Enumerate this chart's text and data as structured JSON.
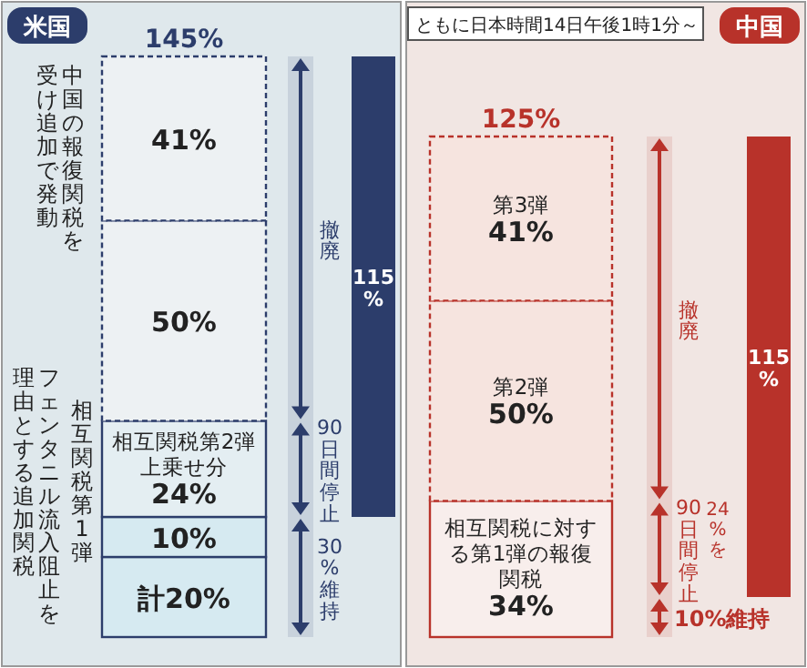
{
  "chart_data": [
    {
      "type": "bar",
      "stacked": true,
      "title": "米国",
      "categories": [
        null
      ],
      "series": [
        {
          "color": "#d6eaf1",
          "values": [
            20
          ],
          "value_labels": [
            "計20%"
          ]
        },
        {
          "color": "#d6eaf1",
          "values": [
            10
          ],
          "value_labels": [
            "10%"
          ]
        },
        {
          "name": "相互関税第2弾上乗せ分",
          "color": "#e4eef2",
          "values": [
            24
          ],
          "value_labels": [
            "24%"
          ]
        },
        {
          "color": "#edf1f3",
          "values": [
            50
          ],
          "value_labels": [
            "50%"
          ]
        },
        {
          "color": "#edf1f3",
          "values": [
            41
          ],
          "value_labels": [
            "41%"
          ]
        }
      ],
      "totals": [
        "145%"
      ],
      "bands": [
        {
          "axis": "y",
          "from": 54,
          "to": 145,
          "label": "撤廃"
        },
        {
          "axis": "y",
          "from": 30,
          "to": 54,
          "label": "90日間停止"
        },
        {
          "axis": "y",
          "from": 0,
          "to": 30,
          "label": "30%維持"
        },
        {
          "axis": "y",
          "from": 30,
          "to": 145,
          "label": "115%",
          "color": "#2c3d6b"
        }
      ],
      "annotations": [
        "中国の報復関税を",
        "受け追加で発動",
        "相互関税第1弾",
        "フェンタニル流入阻止を",
        "理由とする追加関税"
      ]
    },
    {
      "type": "bar",
      "stacked": true,
      "title": "中国",
      "categories": [
        null
      ],
      "series": [
        {
          "name": "相互関税に対する第1弾の報復関税",
          "color": "#f8eeec",
          "values": [
            34
          ],
          "value_labels": [
            "34%"
          ]
        },
        {
          "name": "第2弾",
          "color": "#f6e4df",
          "values": [
            50
          ],
          "value_labels": [
            "50%"
          ]
        },
        {
          "name": "第3弾",
          "color": "#f6e4df",
          "values": [
            41
          ],
          "value_labels": [
            "41%"
          ]
        }
      ],
      "totals": [
        "125%"
      ],
      "bands": [
        {
          "axis": "y",
          "from": 34,
          "to": 125,
          "label": "撤廃"
        },
        {
          "axis": "y",
          "from": 10,
          "to": 34,
          "label": "90日間停止"
        },
        {
          "axis": "y",
          "from": 0,
          "to": 10,
          "label": "10%維持"
        },
        {
          "axis": "y",
          "from": 10,
          "to": 125,
          "label": "115%",
          "color": "#b8322a"
        }
      ],
      "annotations": [
        "ともに日本時間14日午後1時1分～",
        "24%を"
      ]
    }
  ]
}
